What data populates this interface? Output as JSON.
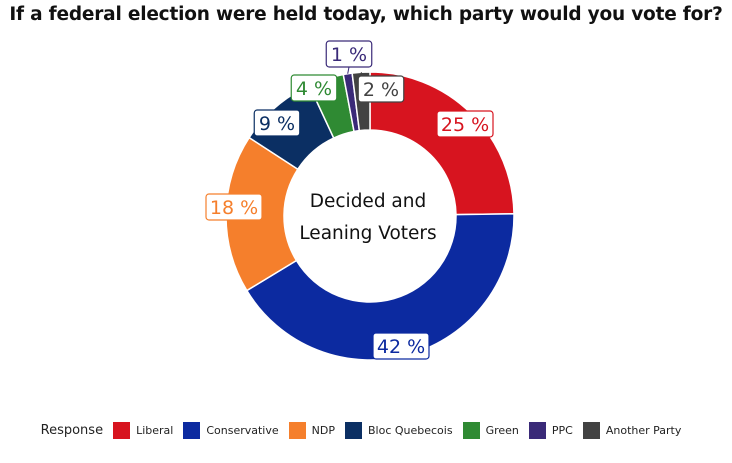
{
  "chart_data": {
    "type": "pie",
    "title": "If a federal election were held today, which party would you vote for?",
    "center_label": [
      "Decided and",
      "Leaning Voters"
    ],
    "legend_title": "Response",
    "legend_position": "bottom",
    "label_suffix": " %",
    "categories": [
      "Liberal",
      "Conservative",
      "NDP",
      "Bloc Quebecois",
      "Green",
      "PPC",
      "Another Party"
    ],
    "values": [
      25,
      42,
      18,
      9,
      4,
      1,
      2
    ],
    "colors": [
      "#d7141f",
      "#0c2aa0",
      "#f57f2c",
      "#0b2f63",
      "#2f8a33",
      "#3a2a78",
      "#424242"
    ]
  }
}
